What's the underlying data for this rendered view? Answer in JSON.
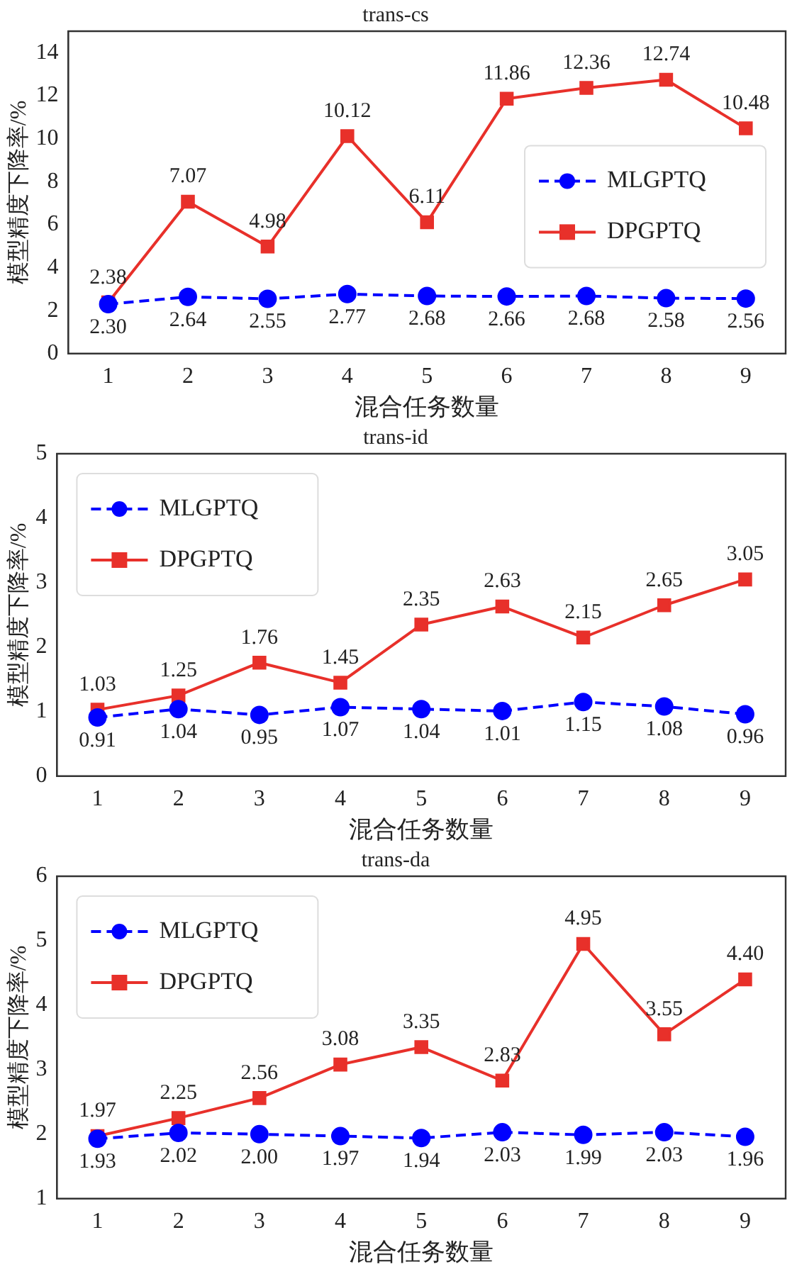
{
  "chart_data": [
    {
      "type": "line",
      "title": "trans-cs",
      "xlabel": "混合任务数量",
      "ylabel": "模型精度下降率/%",
      "categories": [
        "1",
        "2",
        "3",
        "4",
        "5",
        "6",
        "7",
        "8",
        "9"
      ],
      "ylim": [
        0,
        15
      ],
      "yticks": [
        0,
        2,
        4,
        6,
        8,
        10,
        12,
        14
      ],
      "grid": false,
      "legend": "right",
      "series": [
        {
          "name": "MLGPTQ",
          "color": "#0000ff",
          "marker": "circle",
          "line_style": "dashed",
          "values": [
            2.3,
            2.64,
            2.55,
            2.77,
            2.68,
            2.66,
            2.68,
            2.58,
            2.56
          ],
          "value_labels": [
            "2.30",
            "2.64",
            "2.55",
            "2.77",
            "2.68",
            "2.66",
            "2.68",
            "2.58",
            "2.56"
          ]
        },
        {
          "name": "DPGPTQ",
          "color": "#e8302a",
          "marker": "square",
          "line_style": "solid",
          "values": [
            2.38,
            7.07,
            4.98,
            10.12,
            6.11,
            11.86,
            12.36,
            12.74,
            10.48
          ],
          "value_labels": [
            "2.38",
            "7.07",
            "4.98",
            "10.12",
            "6.11",
            "11.86",
            "12.36",
            "12.74",
            "10.48"
          ]
        }
      ]
    },
    {
      "type": "line",
      "title": "trans-id",
      "xlabel": "混合任务数量",
      "ylabel": "模型精度下降率/%",
      "categories": [
        "1",
        "2",
        "3",
        "4",
        "5",
        "6",
        "7",
        "8",
        "9"
      ],
      "ylim": [
        0,
        5
      ],
      "yticks": [
        0,
        1,
        2,
        3,
        4,
        5
      ],
      "grid": false,
      "legend": "top left",
      "series": [
        {
          "name": "MLGPTQ",
          "color": "#0000ff",
          "marker": "circle",
          "line_style": "dashed",
          "values": [
            0.91,
            1.04,
            0.95,
            1.07,
            1.04,
            1.01,
            1.15,
            1.08,
            0.96
          ],
          "value_labels": [
            "0.91",
            "1.04",
            "0.95",
            "1.07",
            "1.04",
            "1.01",
            "1.15",
            "1.08",
            "0.96"
          ]
        },
        {
          "name": "DPGPTQ",
          "color": "#e8302a",
          "marker": "square",
          "line_style": "solid",
          "values": [
            1.03,
            1.25,
            1.76,
            1.45,
            2.35,
            2.63,
            2.15,
            2.65,
            3.05
          ],
          "value_labels": [
            "1.03",
            "1.25",
            "1.76",
            "1.45",
            "2.35",
            "2.63",
            "2.15",
            "2.65",
            "3.05"
          ]
        }
      ]
    },
    {
      "type": "line",
      "title": "trans-da",
      "xlabel": "混合任务数量",
      "ylabel": "模型精度下降率/%",
      "categories": [
        "1",
        "2",
        "3",
        "4",
        "5",
        "6",
        "7",
        "8",
        "9"
      ],
      "ylim": [
        1,
        6
      ],
      "yticks": [
        1,
        2,
        3,
        4,
        5,
        6
      ],
      "grid": false,
      "legend": "top left",
      "series": [
        {
          "name": "MLGPTQ",
          "color": "#0000ff",
          "marker": "circle",
          "line_style": "dashed",
          "values": [
            1.93,
            2.02,
            2.0,
            1.97,
            1.94,
            2.03,
            1.99,
            2.03,
            1.96
          ],
          "value_labels": [
            "1.93",
            "2.02",
            "2.00",
            "1.97",
            "1.94",
            "2.03",
            "1.99",
            "2.03",
            "1.96"
          ]
        },
        {
          "name": "DPGPTQ",
          "color": "#e8302a",
          "marker": "square",
          "line_style": "solid",
          "values": [
            1.97,
            2.25,
            2.56,
            3.08,
            3.35,
            2.83,
            4.95,
            3.55,
            4.4
          ],
          "value_labels": [
            "1.97",
            "2.25",
            "2.56",
            "3.08",
            "3.35",
            "2.83",
            "4.95",
            "3.55",
            "4.40"
          ]
        }
      ]
    }
  ]
}
